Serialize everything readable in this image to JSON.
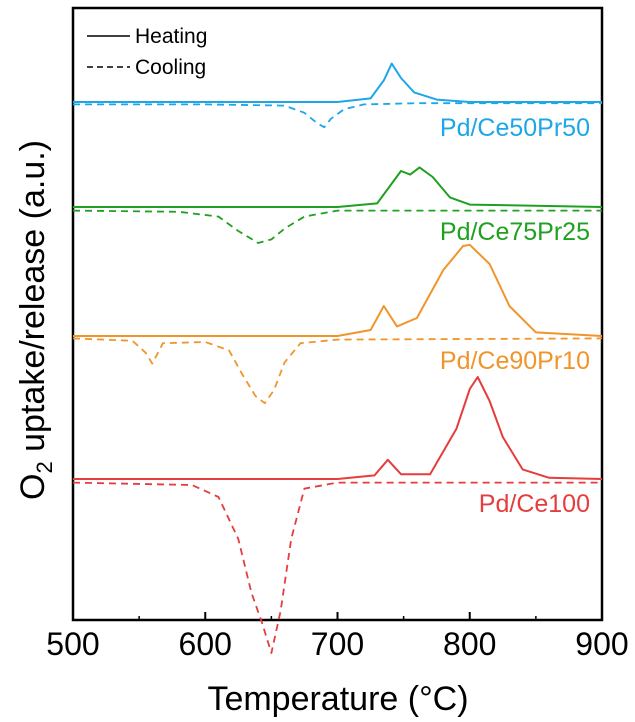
{
  "chart_data": {
    "type": "line",
    "xlabel": "Temperature (°C)",
    "ylabel_main": "O",
    "ylabel_sub": "2",
    "ylabel_rest": " uptake/release (a.u.)",
    "xlim": [
      500,
      900
    ],
    "x_ticks": [
      500,
      600,
      700,
      800,
      900
    ],
    "y_ticks_shown": false,
    "legend": {
      "position": "top-left",
      "entries": [
        {
          "label": "Heating",
          "style": "solid"
        },
        {
          "label": "Cooling",
          "style": "dashed"
        }
      ]
    },
    "series": [
      {
        "name": "Pd/Ce50Pr50",
        "color": "#1ea7e8",
        "heating": {
          "x": [
            500,
            600,
            700,
            725,
            735,
            741,
            748,
            758,
            775,
            800,
            900
          ],
          "y": [
            0,
            0,
            0,
            0.3,
            1.8,
            3.2,
            2.0,
            0.8,
            0.2,
            0,
            0
          ]
        },
        "cooling": {
          "x": [
            500,
            600,
            660,
            675,
            685,
            690,
            695,
            705,
            720,
            760,
            900
          ],
          "y": [
            -0.2,
            -0.2,
            -0.3,
            -0.9,
            -1.8,
            -2.1,
            -1.4,
            -0.6,
            -0.2,
            -0.1,
            -0.1
          ]
        }
      },
      {
        "name": "Pd/Ce75Pr25",
        "color": "#20a020",
        "heating": {
          "x": [
            500,
            600,
            700,
            730,
            740,
            748,
            755,
            762,
            772,
            785,
            800,
            900
          ],
          "y": [
            0,
            0,
            0,
            0.3,
            1.8,
            3.0,
            2.7,
            3.3,
            2.5,
            0.8,
            0.2,
            0
          ]
        },
        "cooling": {
          "x": [
            500,
            580,
            610,
            625,
            640,
            650,
            660,
            675,
            700,
            900
          ],
          "y": [
            -0.3,
            -0.4,
            -0.8,
            -2.0,
            -3.0,
            -2.7,
            -1.8,
            -0.8,
            -0.3,
            -0.3
          ]
        }
      },
      {
        "name": "Pd/Ce90Pr10",
        "color": "#f0952c",
        "heating": {
          "x": [
            500,
            600,
            700,
            725,
            735,
            745,
            760,
            780,
            795,
            800,
            815,
            830,
            850,
            900
          ],
          "y": [
            0,
            0,
            0,
            0.5,
            2.5,
            0.8,
            1.5,
            5.5,
            7.5,
            7.6,
            6.0,
            2.5,
            0.3,
            0
          ]
        },
        "cooling": {
          "x": [
            500,
            545,
            555,
            560,
            568,
            600,
            618,
            628,
            638,
            645,
            652,
            660,
            672,
            700,
            900
          ],
          "y": [
            -0.2,
            -0.4,
            -1.4,
            -2.3,
            -0.6,
            -0.5,
            -1.2,
            -3.2,
            -5.0,
            -5.6,
            -4.5,
            -2.2,
            -0.6,
            -0.3,
            -0.2
          ]
        }
      },
      {
        "name": "Pd/Ce100",
        "color": "#e53d3d",
        "heating": {
          "x": [
            500,
            600,
            700,
            728,
            738,
            748,
            770,
            790,
            800,
            806,
            815,
            825,
            840,
            860,
            900
          ],
          "y": [
            0,
            0,
            0,
            0.3,
            1.6,
            0.4,
            0.4,
            4.2,
            7.5,
            8.5,
            6.5,
            3.5,
            0.8,
            0.1,
            0
          ]
        },
        "cooling": {
          "x": [
            500,
            590,
            610,
            625,
            635,
            643,
            650,
            657,
            665,
            675,
            700,
            900
          ],
          "y": [
            -0.3,
            -0.5,
            -1.5,
            -5.0,
            -9.5,
            -12.0,
            -14.5,
            -11.0,
            -5.0,
            -0.8,
            -0.3,
            -0.3
          ]
        }
      }
    ]
  }
}
